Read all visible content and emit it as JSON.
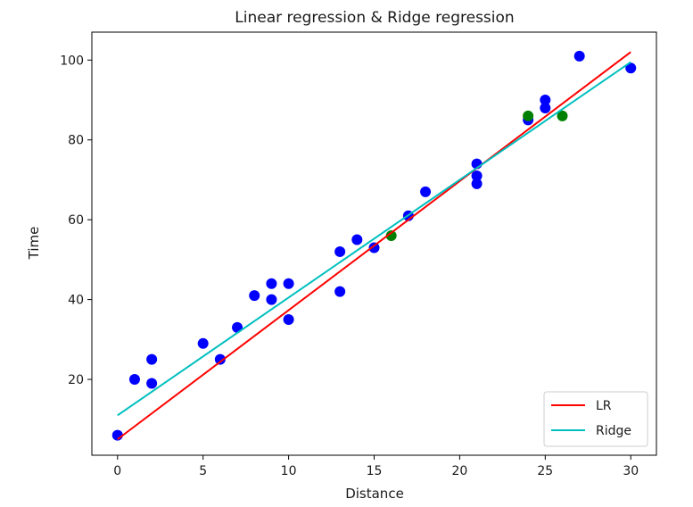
{
  "chart_data": {
    "type": "scatter",
    "title": "Linear regression &  Ridge regression",
    "xlabel": "Distance",
    "ylabel": "Time",
    "xlim": [
      -1.5,
      31.5
    ],
    "ylim": [
      1,
      107
    ],
    "xticks": [
      0,
      5,
      10,
      15,
      20,
      25,
      30
    ],
    "yticks": [
      20,
      40,
      60,
      80,
      100
    ],
    "grid": false,
    "legend_position": "bottom-right",
    "scatter_series": [
      {
        "color": "#0000ff",
        "points": [
          [
            0,
            6
          ],
          [
            1,
            20
          ],
          [
            2,
            25
          ],
          [
            2,
            19
          ],
          [
            5,
            29
          ],
          [
            6,
            25
          ],
          [
            7,
            33
          ],
          [
            8,
            41
          ],
          [
            9,
            44
          ],
          [
            9,
            40
          ],
          [
            10,
            44
          ],
          [
            10,
            35
          ],
          [
            13,
            52
          ],
          [
            13,
            42
          ],
          [
            14,
            55
          ],
          [
            15,
            53
          ],
          [
            17,
            61
          ],
          [
            18,
            67
          ],
          [
            21,
            74
          ],
          [
            21,
            71
          ],
          [
            21,
            69
          ],
          [
            24,
            85
          ],
          [
            25,
            90
          ],
          [
            25,
            88
          ],
          [
            27,
            101
          ],
          [
            30,
            98
          ]
        ]
      },
      {
        "color": "#008000",
        "points": [
          [
            16,
            56
          ],
          [
            24,
            86
          ],
          [
            26,
            86
          ]
        ]
      }
    ],
    "series": [
      {
        "name": "LR",
        "color": "#ff0000",
        "type": "line",
        "x": [
          0,
          30
        ],
        "y": [
          5,
          102
        ]
      },
      {
        "name": "Ridge",
        "color": "#00bfbf",
        "type": "line",
        "x": [
          0,
          30
        ],
        "y": [
          11,
          99.5
        ]
      }
    ]
  }
}
